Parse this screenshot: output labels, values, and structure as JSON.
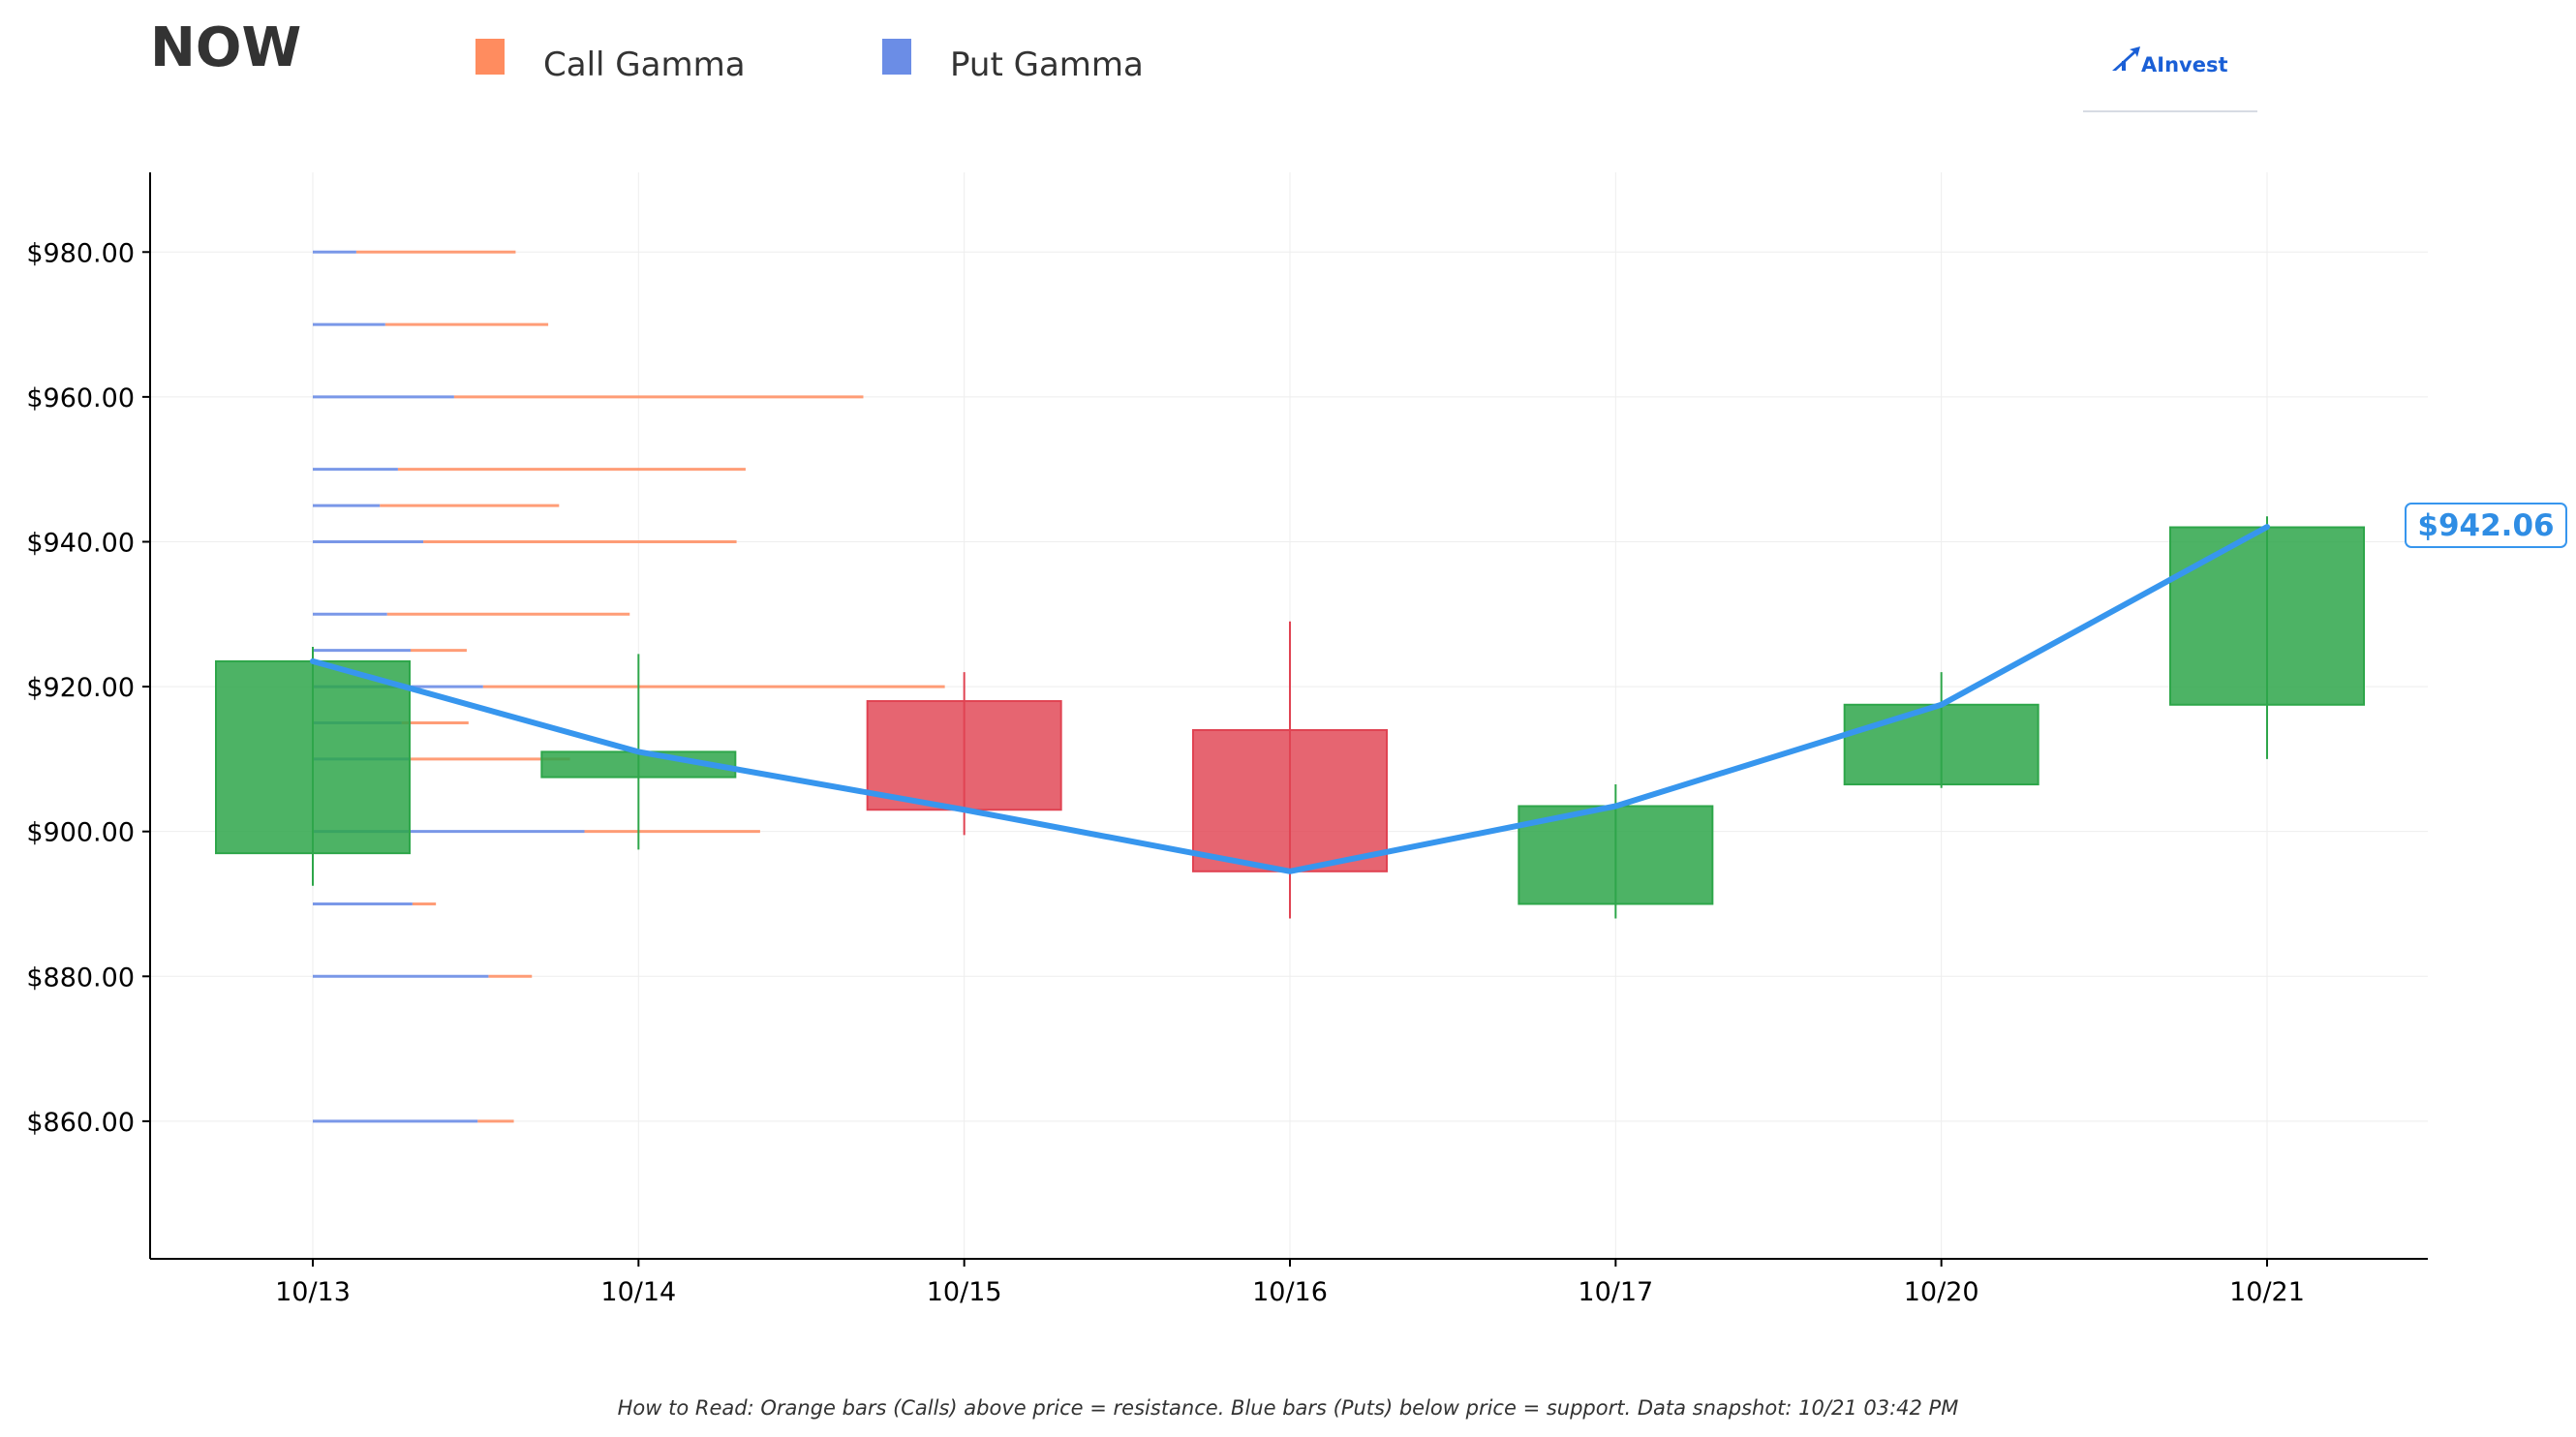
{
  "header": {
    "ticker": "NOW",
    "logo_text": "AInvest"
  },
  "legend": [
    {
      "label": "Call Gamma",
      "color": "#ff8c5f"
    },
    {
      "label": "Put Gamma",
      "color": "#6b8de6"
    }
  ],
  "footer": {
    "note": "How to Read: Orange bars (Calls) above price = resistance. Blue bars (Puts) below price = support. Data snapshot: 10/21 03:42 PM"
  },
  "chart_data": {
    "type": "candlestick",
    "categories": [
      "10/13",
      "10/14",
      "10/15",
      "10/16",
      "10/17",
      "10/20",
      "10/21"
    ],
    "ylim": [
      841,
      991
    ],
    "y_ticks": [
      860,
      880,
      900,
      920,
      940,
      960,
      980
    ],
    "y_tick_labels": [
      "$860.00",
      "$880.00",
      "$900.00",
      "$920.00",
      "$940.00",
      "$960.00",
      "$980.00"
    ],
    "grid": true,
    "colors": {
      "up": "#2ea64a",
      "down": "#e04352",
      "line": "#3796ee"
    },
    "candles": [
      {
        "date": "10/13",
        "open": 897,
        "high": 925.5,
        "low": 892.5,
        "close": 923.5
      },
      {
        "date": "10/14",
        "open": 907.5,
        "high": 924.5,
        "low": 897.5,
        "close": 911
      },
      {
        "date": "10/15",
        "open": 918,
        "high": 922,
        "low": 899.5,
        "close": 903
      },
      {
        "date": "10/16",
        "open": 914,
        "high": 929,
        "low": 888,
        "close": 894.5
      },
      {
        "date": "10/17",
        "open": 890,
        "high": 906.5,
        "low": 888,
        "close": 903.5
      },
      {
        "date": "10/20",
        "open": 906.5,
        "high": 922,
        "low": 906,
        "close": 917.5
      },
      {
        "date": "10/21",
        "open": 917.5,
        "high": 943.5,
        "low": 910,
        "close": 942
      }
    ],
    "price_line": [
      923.5,
      911,
      903,
      894.5,
      903.5,
      917.5,
      942.06
    ],
    "current_price": 942.06,
    "current_price_label": "$942.06",
    "gamma_levels": [
      {
        "strike": 980,
        "put": 0.24,
        "call": 0.88
      },
      {
        "strike": 970,
        "put": 0.4,
        "call": 0.9
      },
      {
        "strike": 960,
        "put": 0.78,
        "call": 2.26
      },
      {
        "strike": 950,
        "put": 0.47,
        "call": 1.92
      },
      {
        "strike": 945,
        "put": 0.37,
        "call": 0.99
      },
      {
        "strike": 940,
        "put": 0.61,
        "call": 1.73
      },
      {
        "strike": 930,
        "put": 0.41,
        "call": 1.34
      },
      {
        "strike": 925,
        "put": 0.54,
        "call": 0.31
      },
      {
        "strike": 920,
        "put": 0.94,
        "call": 2.55
      },
      {
        "strike": 915,
        "put": 0.49,
        "call": 0.37
      },
      {
        "strike": 910,
        "put": 0.54,
        "call": 0.88
      },
      {
        "strike": 900,
        "put": 1.5,
        "call": 0.97
      },
      {
        "strike": 890,
        "put": 0.55,
        "call": 0.13
      },
      {
        "strike": 880,
        "put": 0.97,
        "call": 0.24
      },
      {
        "strike": 860,
        "put": 0.91,
        "call": 0.2
      }
    ]
  }
}
